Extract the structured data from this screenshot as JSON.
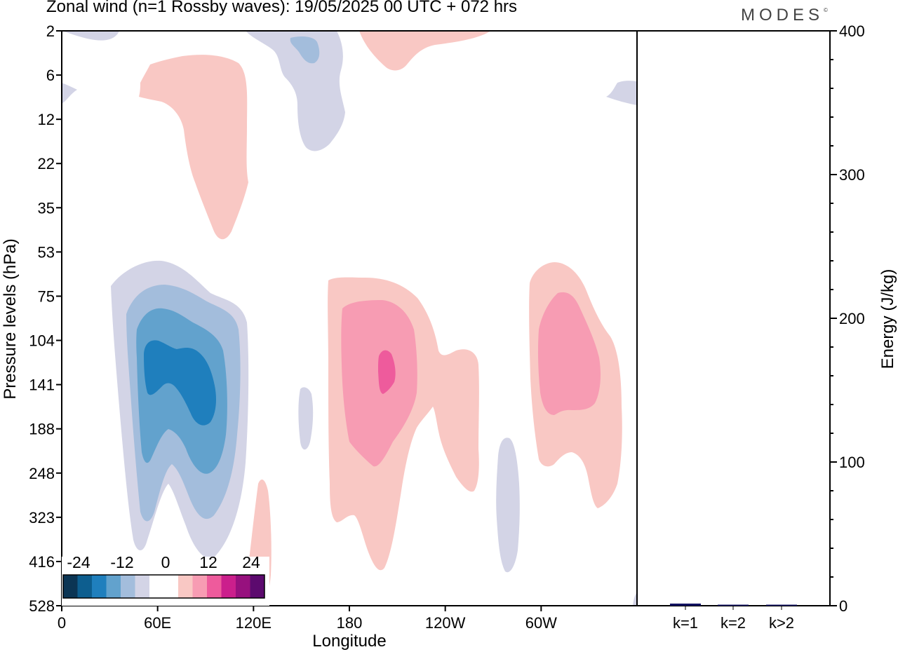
{
  "title": "Zonal wind (n=1 Rossby waves):  19/05/2025  00 UTC  + 072 hrs",
  "brand": "MODES",
  "brand_mark": "©",
  "chart_data": [
    {
      "type": "heatmap",
      "variable": "Zonal wind (n=1 Rossby waves)",
      "xlabel": "Longitude",
      "ylabel": "Pressure levels (hPa)",
      "x_ticks": [
        "0",
        "60E",
        "120E",
        "180",
        "120W",
        "60W"
      ],
      "x_tick_values": [
        0,
        60,
        120,
        180,
        240,
        300
      ],
      "xlim": [
        0,
        360
      ],
      "y_ticks": [
        "2",
        "6",
        "12",
        "22",
        "35",
        "53",
        "75",
        "104",
        "141",
        "188",
        "248",
        "323",
        "416",
        "528"
      ],
      "colorbar": {
        "labels": [
          "-24",
          "-12",
          "0",
          "12",
          "24"
        ],
        "colors": [
          "#0b3554",
          "#0d5e8f",
          "#1f7fbd",
          "#62a2cd",
          "#a3bddc",
          "#d3d4e6",
          "#ffffff",
          "#ffffff",
          "#f9c8c4",
          "#f79cb3",
          "#ee5b9c",
          "#cb1f8c",
          "#97117e",
          "#5c0a6e"
        ]
      },
      "features": [
        {
          "lon": 80,
          "level": 141,
          "value": -20
        },
        {
          "lon": 197,
          "level": 120,
          "value": 16
        },
        {
          "lon": 320,
          "level": 120,
          "value": 10
        },
        {
          "lon": 100,
          "level": 25,
          "value": 4
        },
        {
          "lon": 148,
          "level": 5,
          "value": -6
        }
      ]
    },
    {
      "type": "bar",
      "categories": [
        "k=1",
        "k=2",
        "k>2"
      ],
      "values": [
        1.5,
        0.3,
        0.6
      ],
      "ylabel": "Energy (J/kg)",
      "y_ticks": [
        "0",
        "100",
        "200",
        "300",
        "400"
      ],
      "ylim": [
        0,
        400
      ],
      "bar_color": "#101060"
    }
  ]
}
